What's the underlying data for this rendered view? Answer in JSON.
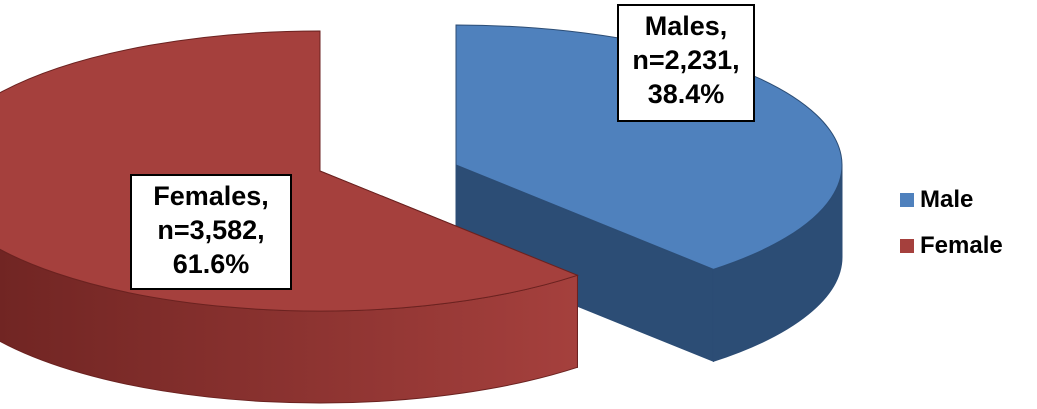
{
  "chart_data": {
    "type": "pie",
    "style": "3d-exploded",
    "categories": [
      "Male",
      "Female"
    ],
    "values": [
      2231,
      3582
    ],
    "percentages": [
      38.4,
      61.6
    ],
    "colors": {
      "Male": {
        "top": "#4f81bd",
        "side": "#2c4d75"
      },
      "Female": {
        "top": "#a5403d",
        "side": "#6b2220"
      }
    },
    "data_labels": [
      {
        "category": "Male",
        "lines": [
          "Males,",
          "n=2,231,",
          "38.4%"
        ]
      },
      {
        "category": "Female",
        "lines": [
          "Females,",
          "n=3,582,",
          "61.6%"
        ]
      }
    ],
    "legend": {
      "position": "right",
      "entries": [
        {
          "label": "Male",
          "color": "#4f81bd"
        },
        {
          "label": "Female",
          "color": "#a5403d"
        }
      ]
    }
  }
}
